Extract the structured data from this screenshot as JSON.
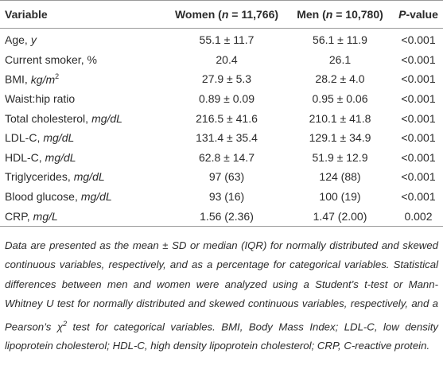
{
  "table": {
    "header": {
      "variable": "Variable",
      "women": [
        "Women (",
        "n",
        " = 11,766)"
      ],
      "men": [
        "Men (",
        "n",
        " = 10,780)"
      ],
      "p": [
        "P",
        "-value"
      ]
    },
    "rows": [
      {
        "label": "Age,",
        "unit": "y",
        "women": "55.1 ± 11.7",
        "men": "56.1 ± 11.9",
        "p": "<0.001"
      },
      {
        "label": "Current smoker, %",
        "women": "20.4",
        "men": "26.1",
        "p": "<0.001"
      },
      {
        "label": "BMI,",
        "unit": "kg/m",
        "sup": "2",
        "women": "27.9 ± 5.3",
        "men": "28.2 ± 4.0",
        "p": "<0.001"
      },
      {
        "label": "Waist:hip ratio",
        "women": "0.89 ± 0.09",
        "men": "0.95 ± 0.06",
        "p": "<0.001"
      },
      {
        "label": "Total cholesterol,",
        "unit": "mg/dL",
        "women": "216.5 ± 41.6",
        "men": "210.1 ± 41.8",
        "p": "<0.001"
      },
      {
        "label": "LDL-C,",
        "unit": "mg/dL",
        "women": "131.4 ± 35.4",
        "men": "129.1 ± 34.9",
        "p": "<0.001"
      },
      {
        "label": "HDL-C,",
        "unit": "mg/dL",
        "women": "62.8 ± 14.7",
        "men": "51.9 ± 12.9",
        "p": "<0.001"
      },
      {
        "label": "Triglycerides,",
        "unit": "mg/dL",
        "women": "97 (63)",
        "men": "124 (88)",
        "p": "<0.001"
      },
      {
        "label": "Blood glucose,",
        "unit": "mg/dL",
        "women": "93 (16)",
        "men": "100 (19)",
        "p": "<0.001"
      },
      {
        "label": "CRP,",
        "unit": "mg/L",
        "women": "1.56 (2.36)",
        "men": "1.47 (2.00)",
        "p": "0.002"
      }
    ],
    "footnote": [
      "Data are presented as the mean ± SD or median (IQR) for normally distributed and skewed continuous variables, respectively, and as a percentage for categorical variables. Statistical differences between men and women were analyzed using a Student’s t-test or Mann-Whitney U test for normally distributed and skewed continuous variables, respectively, and a Pearson’s χ",
      "2",
      " test for categorical variables. BMI, Body Mass Index; LDL-C, low density lipoprotein cholesterol; HDL-C, high density lipoprotein cholesterol; CRP, C-reactive protein."
    ]
  }
}
